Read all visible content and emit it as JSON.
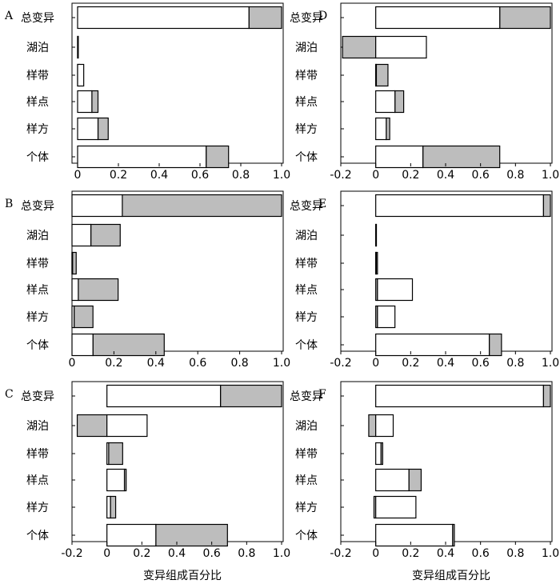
{
  "colors": {
    "white_segment": "#ffffff",
    "gray_segment": "#bdbdbd",
    "outline": "#000000"
  },
  "chart_data": [
    {
      "type": "bar",
      "orientation": "horizontal",
      "stacked": true,
      "panel": "A",
      "categories": [
        "总变异",
        "湖泊",
        "样带",
        "样点",
        "样方",
        "个体"
      ],
      "xlim": [
        0,
        1.0
      ],
      "xticks": [
        "0",
        "0.2",
        "0.4",
        "0.6",
        "0.8",
        "1.0"
      ],
      "xlabel": "",
      "bars": [
        {
          "white": [
            0,
            0.84
          ],
          "gray": [
            0.84,
            1.0
          ]
        },
        {
          "white": [
            0,
            0.0
          ],
          "gray": [
            0,
            0.0
          ]
        },
        {
          "white": [
            0,
            0.03
          ],
          "gray": [
            0,
            0.01
          ]
        },
        {
          "white": [
            0,
            0.07
          ],
          "gray": [
            0.07,
            0.1
          ]
        },
        {
          "white": [
            0,
            0.1
          ],
          "gray": [
            0.1,
            0.15
          ]
        },
        {
          "white": [
            0,
            0.63
          ],
          "gray": [
            0.63,
            0.74
          ]
        }
      ]
    },
    {
      "type": "bar",
      "orientation": "horizontal",
      "stacked": true,
      "panel": "B",
      "categories": [
        "总变异",
        "湖泊",
        "样带",
        "样点",
        "样方",
        "个体"
      ],
      "xlim": [
        0,
        1.0
      ],
      "xticks": [
        "0",
        "0.2",
        "0.4",
        "0.6",
        "0.8",
        "1.0"
      ],
      "xlabel": "",
      "bars": [
        {
          "white": [
            0,
            0.24
          ],
          "gray": [
            0.24,
            1.0
          ]
        },
        {
          "white": [
            0,
            0.09
          ],
          "gray": [
            0.09,
            0.23
          ]
        },
        {
          "white": [
            0,
            0.0
          ],
          "gray": [
            0,
            0.02
          ]
        },
        {
          "white": [
            0,
            0.03
          ],
          "gray": [
            0.03,
            0.22
          ]
        },
        {
          "white": [
            0,
            0.01
          ],
          "gray": [
            0.01,
            0.1
          ]
        },
        {
          "white": [
            0,
            0.1
          ],
          "gray": [
            0.1,
            0.44
          ]
        }
      ]
    },
    {
      "type": "bar",
      "orientation": "horizontal",
      "stacked": true,
      "panel": "C",
      "categories": [
        "总变异",
        "湖泊",
        "样带",
        "样点",
        "样方",
        "个体"
      ],
      "xlim": [
        -0.2,
        1.0
      ],
      "xticks": [
        "-0.2",
        "0",
        "0.2",
        "0.4",
        "0.6",
        "0.8",
        "1.0"
      ],
      "xlabel": "变异组成百分比",
      "bars": [
        {
          "white": [
            0,
            0.65
          ],
          "gray": [
            0.65,
            1.0
          ]
        },
        {
          "white": [
            0,
            0.23
          ],
          "gray": [
            -0.17,
            0
          ]
        },
        {
          "white": [
            0,
            0.01
          ],
          "gray": [
            0.01,
            0.09
          ]
        },
        {
          "white": [
            0,
            0.1
          ],
          "gray": [
            0.1,
            0.11
          ]
        },
        {
          "white": [
            0,
            0.02
          ],
          "gray": [
            0.02,
            0.05
          ]
        },
        {
          "white": [
            0,
            0.28
          ],
          "gray": [
            0.28,
            0.69
          ]
        }
      ]
    },
    {
      "type": "bar",
      "orientation": "horizontal",
      "stacked": true,
      "panel": "D",
      "categories": [
        "总变异",
        "湖泊",
        "样带",
        "样点",
        "样方",
        "个体"
      ],
      "xlim": [
        -0.2,
        1.0
      ],
      "xticks": [
        "-0.2",
        "0",
        "0.2",
        "0.4",
        "0.6",
        "0.8",
        "1.0"
      ],
      "xlabel": "",
      "bars": [
        {
          "white": [
            0,
            0.71
          ],
          "gray": [
            0.71,
            1.0
          ]
        },
        {
          "white": [
            0,
            0.29
          ],
          "gray": [
            -0.19,
            0
          ]
        },
        {
          "white": [
            0,
            0.0
          ],
          "gray": [
            0,
            0.07
          ]
        },
        {
          "white": [
            0,
            0.11
          ],
          "gray": [
            0.11,
            0.16
          ]
        },
        {
          "white": [
            0,
            0.06
          ],
          "gray": [
            0.06,
            0.08
          ]
        },
        {
          "white": [
            0,
            0.27
          ],
          "gray": [
            0.27,
            0.71
          ]
        }
      ]
    },
    {
      "type": "bar",
      "orientation": "horizontal",
      "stacked": true,
      "panel": "E",
      "categories": [
        "总变异",
        "湖泊",
        "样带",
        "样点",
        "样方",
        "个体"
      ],
      "xlim": [
        -0.2,
        1.0
      ],
      "xticks": [
        "-0.2",
        "0",
        "0.2",
        "0.4",
        "0.6",
        "0.8",
        "1.0"
      ],
      "xlabel": "",
      "bars": [
        {
          "white": [
            0,
            0.96
          ],
          "gray": [
            0.96,
            1.0
          ]
        },
        {
          "white": [
            0,
            0.0
          ],
          "gray": [
            0,
            0.0
          ]
        },
        {
          "white": [
            0,
            0.0
          ],
          "gray": [
            0,
            0.01
          ]
        },
        {
          "white": [
            0.01,
            0.21
          ],
          "gray": [
            0,
            0.01
          ]
        },
        {
          "white": [
            0.01,
            0.11
          ],
          "gray": [
            0,
            0.01
          ]
        },
        {
          "white": [
            0,
            0.65
          ],
          "gray": [
            0.65,
            0.72
          ]
        }
      ]
    },
    {
      "type": "bar",
      "orientation": "horizontal",
      "stacked": true,
      "panel": "F",
      "categories": [
        "总变异",
        "湖泊",
        "样带",
        "样点",
        "样方",
        "个体"
      ],
      "xlim": [
        -0.2,
        1.0
      ],
      "xticks": [
        "-0.2",
        "0",
        "0.2",
        "0.4",
        "0.6",
        "0.8",
        "1.0"
      ],
      "xlabel": "变异组成百分比",
      "bars": [
        {
          "white": [
            0,
            0.96
          ],
          "gray": [
            0.96,
            1.0
          ]
        },
        {
          "white": [
            0,
            0.1
          ],
          "gray": [
            -0.04,
            0
          ]
        },
        {
          "white": [
            0,
            0.03
          ],
          "gray": [
            0.03,
            0.04
          ]
        },
        {
          "white": [
            0,
            0.19
          ],
          "gray": [
            0.19,
            0.26
          ]
        },
        {
          "white": [
            0,
            0.23
          ],
          "gray": [
            -0.01,
            0
          ]
        },
        {
          "white": [
            0,
            0.44
          ],
          "gray": [
            0.44,
            0.45
          ]
        }
      ]
    }
  ]
}
